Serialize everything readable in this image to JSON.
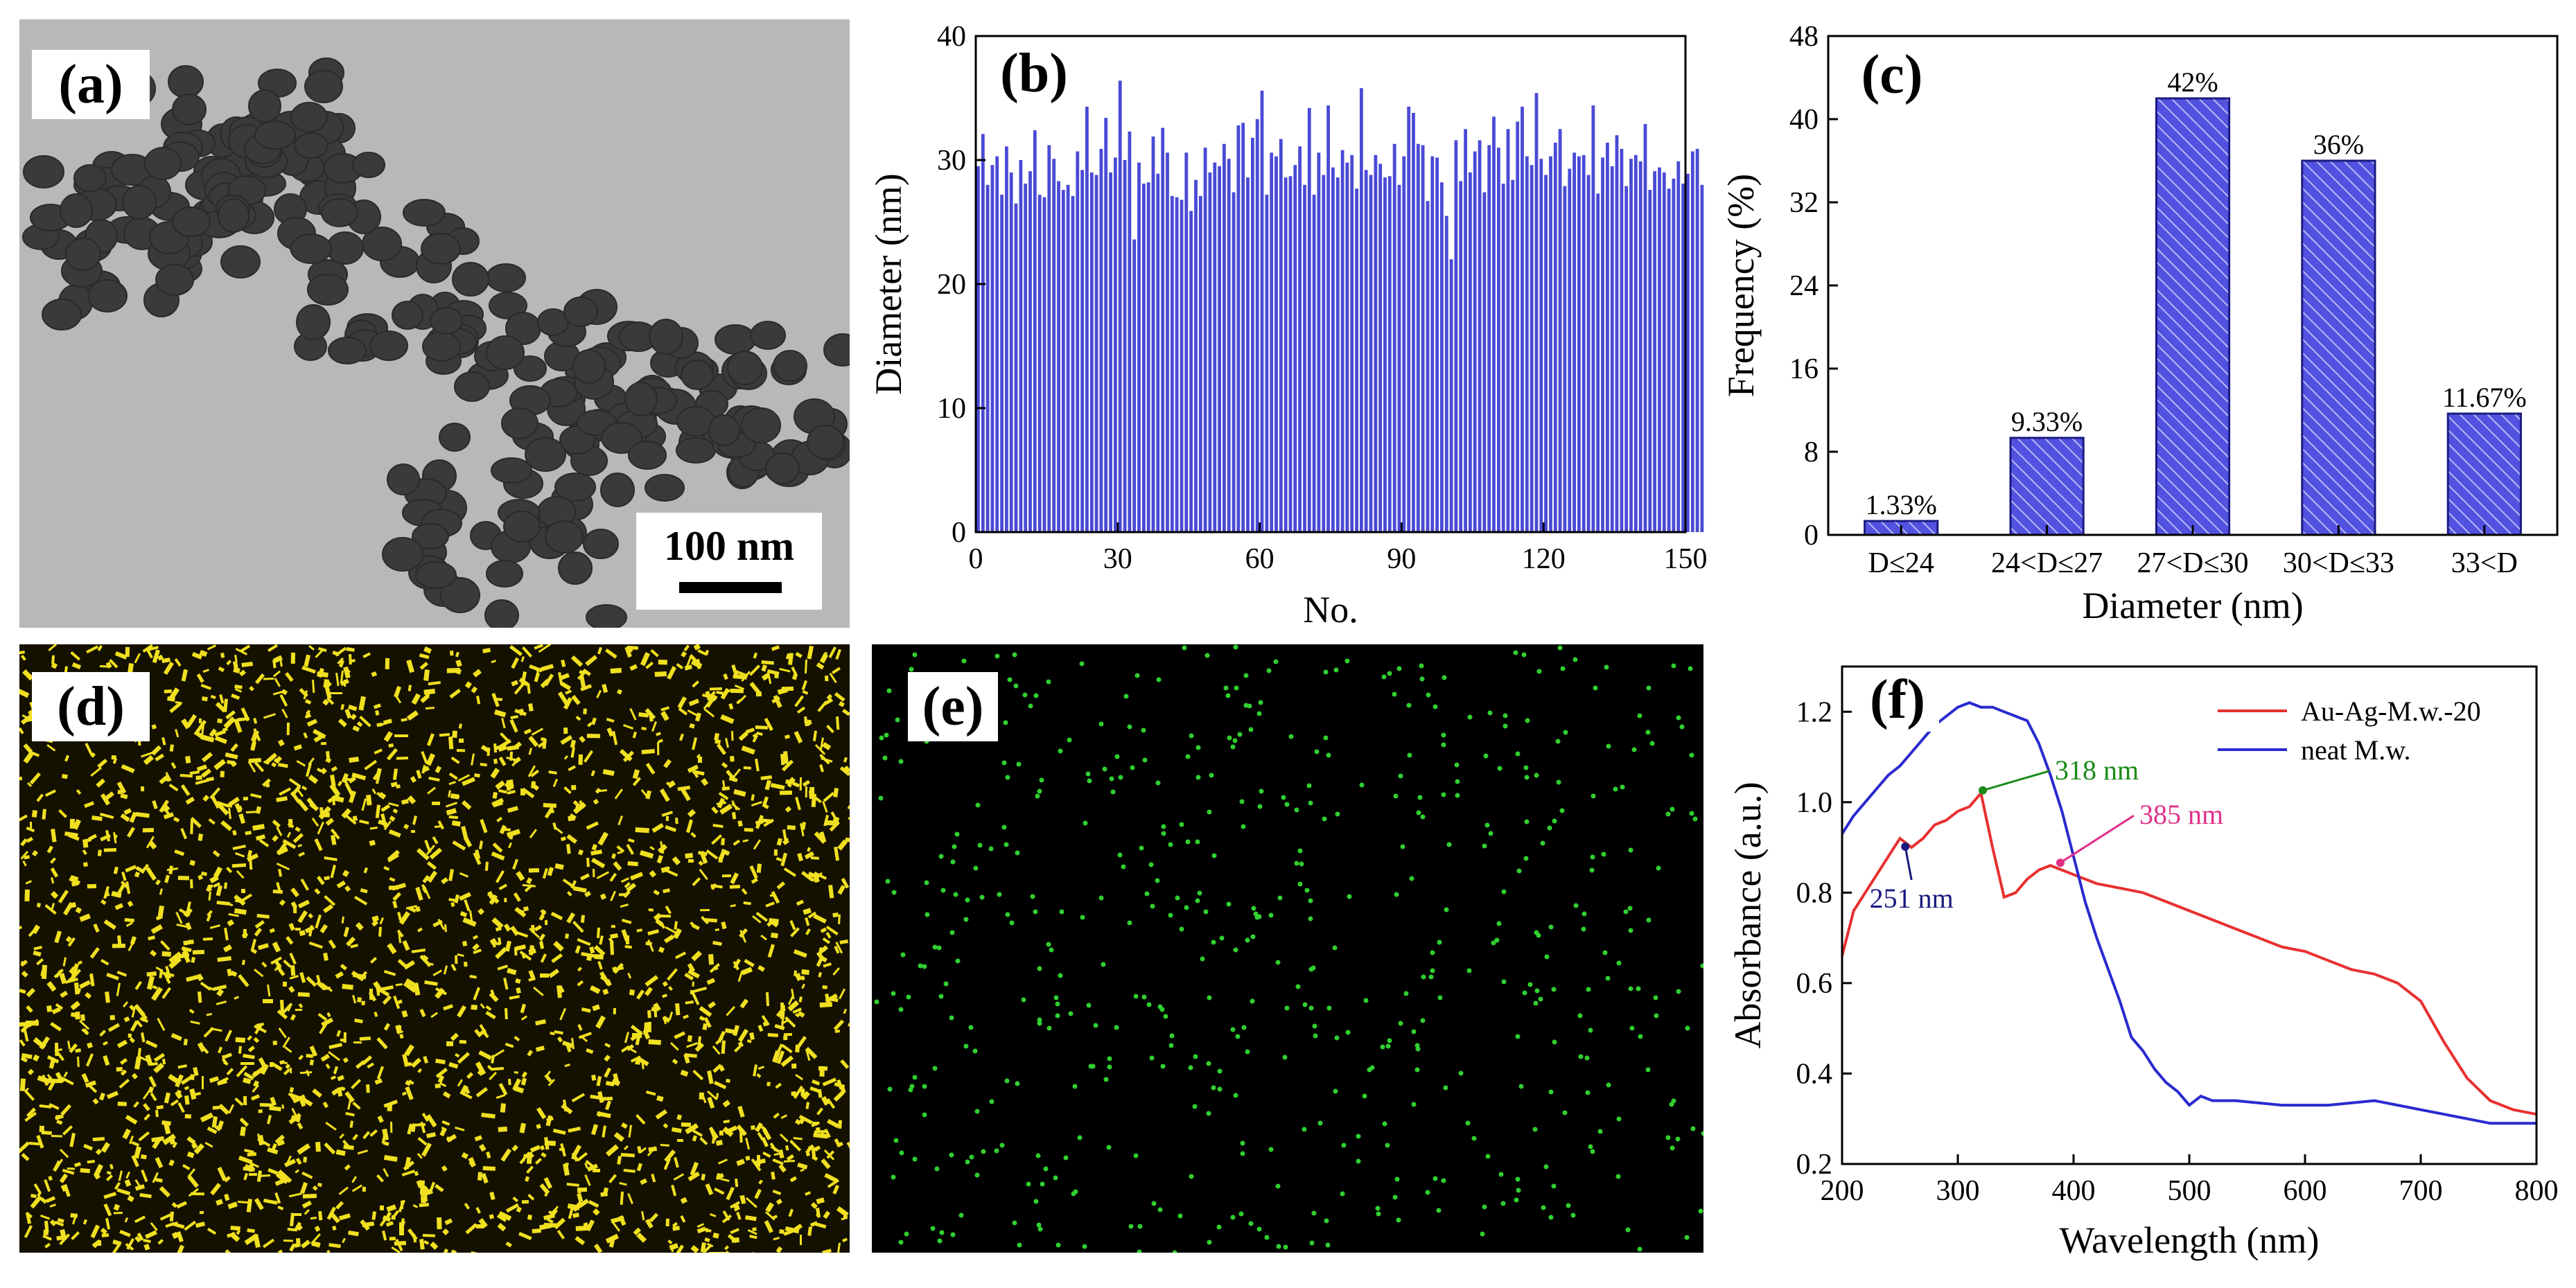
{
  "panels": {
    "a": {
      "label": "(a)",
      "scale_bar": "100 nm"
    },
    "b": {
      "label": "(b)"
    },
    "c": {
      "label": "(c)"
    },
    "d": {
      "label": "(d)"
    },
    "e": {
      "label": "(e)"
    },
    "f": {
      "label": "(f)"
    }
  },
  "colors": {
    "bar_blue": "#4a4ad6",
    "au_ag": "#e83030",
    "neat": "#2a2ad0",
    "ann_green": "#1a8a1a",
    "ann_blue": "#1a1a80",
    "ann_pink": "#e03088",
    "map_yellow": "#f0e020",
    "map_green": "#30d030"
  },
  "chart_data": [
    {
      "type": "bar",
      "panel": "b",
      "title": "",
      "xlabel": "No.",
      "ylabel": "Diameter (nm)",
      "xlim": [
        0,
        150
      ],
      "ylim": [
        0,
        40
      ],
      "xticks": [
        0,
        30,
        60,
        90,
        120,
        150
      ],
      "yticks": [
        0,
        10,
        20,
        30,
        40
      ],
      "values": [
        29.5,
        32.1,
        28.0,
        29.6,
        30.3,
        27.2,
        31.1,
        29.0,
        26.5,
        30.0,
        28.1,
        29.1,
        32.4,
        27.2,
        27.0,
        31.2,
        30.1,
        28.3,
        27.6,
        28.0,
        27.1,
        30.7,
        29.2,
        34.3,
        29.0,
        28.8,
        30.9,
        33.4,
        29.0,
        30.2,
        36.4,
        30.0,
        32.3,
        23.6,
        29.8,
        28.1,
        28.2,
        31.9,
        28.9,
        32.6,
        30.6,
        27.1,
        27.0,
        26.8,
        30.6,
        25.9,
        28.4,
        27.1,
        31.0,
        29.0,
        29.8,
        29.5,
        31.3,
        30.1,
        27.4,
        32.8,
        33.0,
        28.6,
        31.8,
        33.3,
        35.6,
        27.2,
        30.6,
        30.3,
        31.7,
        28.6,
        28.7,
        29.6,
        31.1,
        28.0,
        34.2,
        27.2,
        30.6,
        28.8,
        34.4,
        29.4,
        28.6,
        30.8,
        29.8,
        30.4,
        27.7,
        35.8,
        29.2,
        28.8,
        30.4,
        29.7,
        28.6,
        28.7,
        31.3,
        28.0,
        30.3,
        34.3,
        33.8,
        31.3,
        31.2,
        26.7,
        30.3,
        30.2,
        28.2,
        25.5,
        22.0,
        31.6,
        28.3,
        32.5,
        29.0,
        30.7,
        31.6,
        27.4,
        31.2,
        33.5,
        31.0,
        28.1,
        32.5,
        28.4,
        33.1,
        34.3,
        30.3,
        29.6,
        35.4,
        30.1,
        28.8,
        30.3,
        31.4,
        32.5,
        27.9,
        29.3,
        30.6,
        30.3,
        30.4,
        28.8,
        34.4,
        27.3,
        30.2,
        31.4,
        29.5,
        32.0,
        30.9,
        27.9,
        30.1,
        30.4,
        29.9,
        32.9,
        27.6,
        29.1,
        29.4,
        29.0,
        27.7,
        28.5,
        29.9,
        28.1,
        28.9,
        30.7,
        30.9,
        28.0
      ]
    },
    {
      "type": "bar",
      "panel": "c",
      "title": "",
      "xlabel": "Diameter (nm)",
      "ylabel": "Frequency (%)",
      "ylim": [
        0,
        48
      ],
      "yticks": [
        0,
        8,
        16,
        24,
        32,
        40,
        48
      ],
      "categories": [
        "D≤24",
        "24<D≤27",
        "27<D≤30",
        "30<D≤33",
        "33<D"
      ],
      "values": [
        1.33,
        9.33,
        42,
        36,
        11.67
      ],
      "data_labels": [
        "1.33%",
        "9.33%",
        "42%",
        "36%",
        "11.67%"
      ]
    },
    {
      "type": "line",
      "panel": "f",
      "title": "",
      "xlabel": "Wavelength (nm)",
      "ylabel": "Absorbance (a.u.)",
      "xlim": [
        200,
        800
      ],
      "ylim": [
        0.2,
        1.3
      ],
      "xticks": [
        200,
        300,
        400,
        500,
        600,
        700,
        800
      ],
      "yticks": [
        0.2,
        0.4,
        0.6,
        0.8,
        1.0,
        1.2
      ],
      "legend_position": "top-right",
      "series": [
        {
          "name": "Au-Ag-M.w.-20",
          "color_key": "au_ag",
          "x": [
            200,
            210,
            220,
            230,
            240,
            250,
            260,
            270,
            280,
            290,
            300,
            310,
            320,
            330,
            340,
            350,
            360,
            370,
            380,
            390,
            400,
            420,
            440,
            460,
            480,
            500,
            520,
            540,
            560,
            580,
            600,
            620,
            640,
            660,
            680,
            700,
            720,
            740,
            760,
            780,
            800
          ],
          "y": [
            0.66,
            0.76,
            0.8,
            0.84,
            0.88,
            0.92,
            0.9,
            0.92,
            0.95,
            0.96,
            0.98,
            0.99,
            1.02,
            0.9,
            0.79,
            0.8,
            0.83,
            0.85,
            0.86,
            0.85,
            0.84,
            0.82,
            0.81,
            0.8,
            0.78,
            0.76,
            0.74,
            0.72,
            0.7,
            0.68,
            0.67,
            0.65,
            0.63,
            0.62,
            0.6,
            0.56,
            0.47,
            0.39,
            0.34,
            0.32,
            0.31
          ]
        },
        {
          "name": "neat M.w.",
          "color_key": "neat",
          "x": [
            200,
            210,
            220,
            230,
            240,
            250,
            260,
            270,
            280,
            290,
            300,
            310,
            320,
            330,
            340,
            350,
            360,
            370,
            380,
            390,
            400,
            410,
            420,
            430,
            440,
            450,
            460,
            470,
            480,
            490,
            500,
            510,
            520,
            540,
            560,
            580,
            600,
            620,
            640,
            660,
            680,
            700,
            720,
            740,
            760,
            780,
            800
          ],
          "y": [
            0.93,
            0.97,
            1.0,
            1.03,
            1.06,
            1.08,
            1.11,
            1.14,
            1.17,
            1.19,
            1.21,
            1.22,
            1.21,
            1.21,
            1.2,
            1.19,
            1.18,
            1.13,
            1.06,
            0.98,
            0.88,
            0.78,
            0.7,
            0.63,
            0.56,
            0.48,
            0.45,
            0.41,
            0.38,
            0.36,
            0.33,
            0.35,
            0.34,
            0.34,
            0.335,
            0.33,
            0.33,
            0.33,
            0.335,
            0.34,
            0.33,
            0.32,
            0.31,
            0.3,
            0.29,
            0.29,
            0.29
          ]
        }
      ],
      "annotations": [
        {
          "text": "318 nm",
          "x": 318,
          "y": 1.02,
          "color_key": "ann_green"
        },
        {
          "text": "251 nm",
          "x": 251,
          "y": 0.92,
          "color_key": "ann_blue"
        },
        {
          "text": "385 nm",
          "x": 385,
          "y": 0.86,
          "color_key": "ann_pink"
        }
      ]
    }
  ]
}
